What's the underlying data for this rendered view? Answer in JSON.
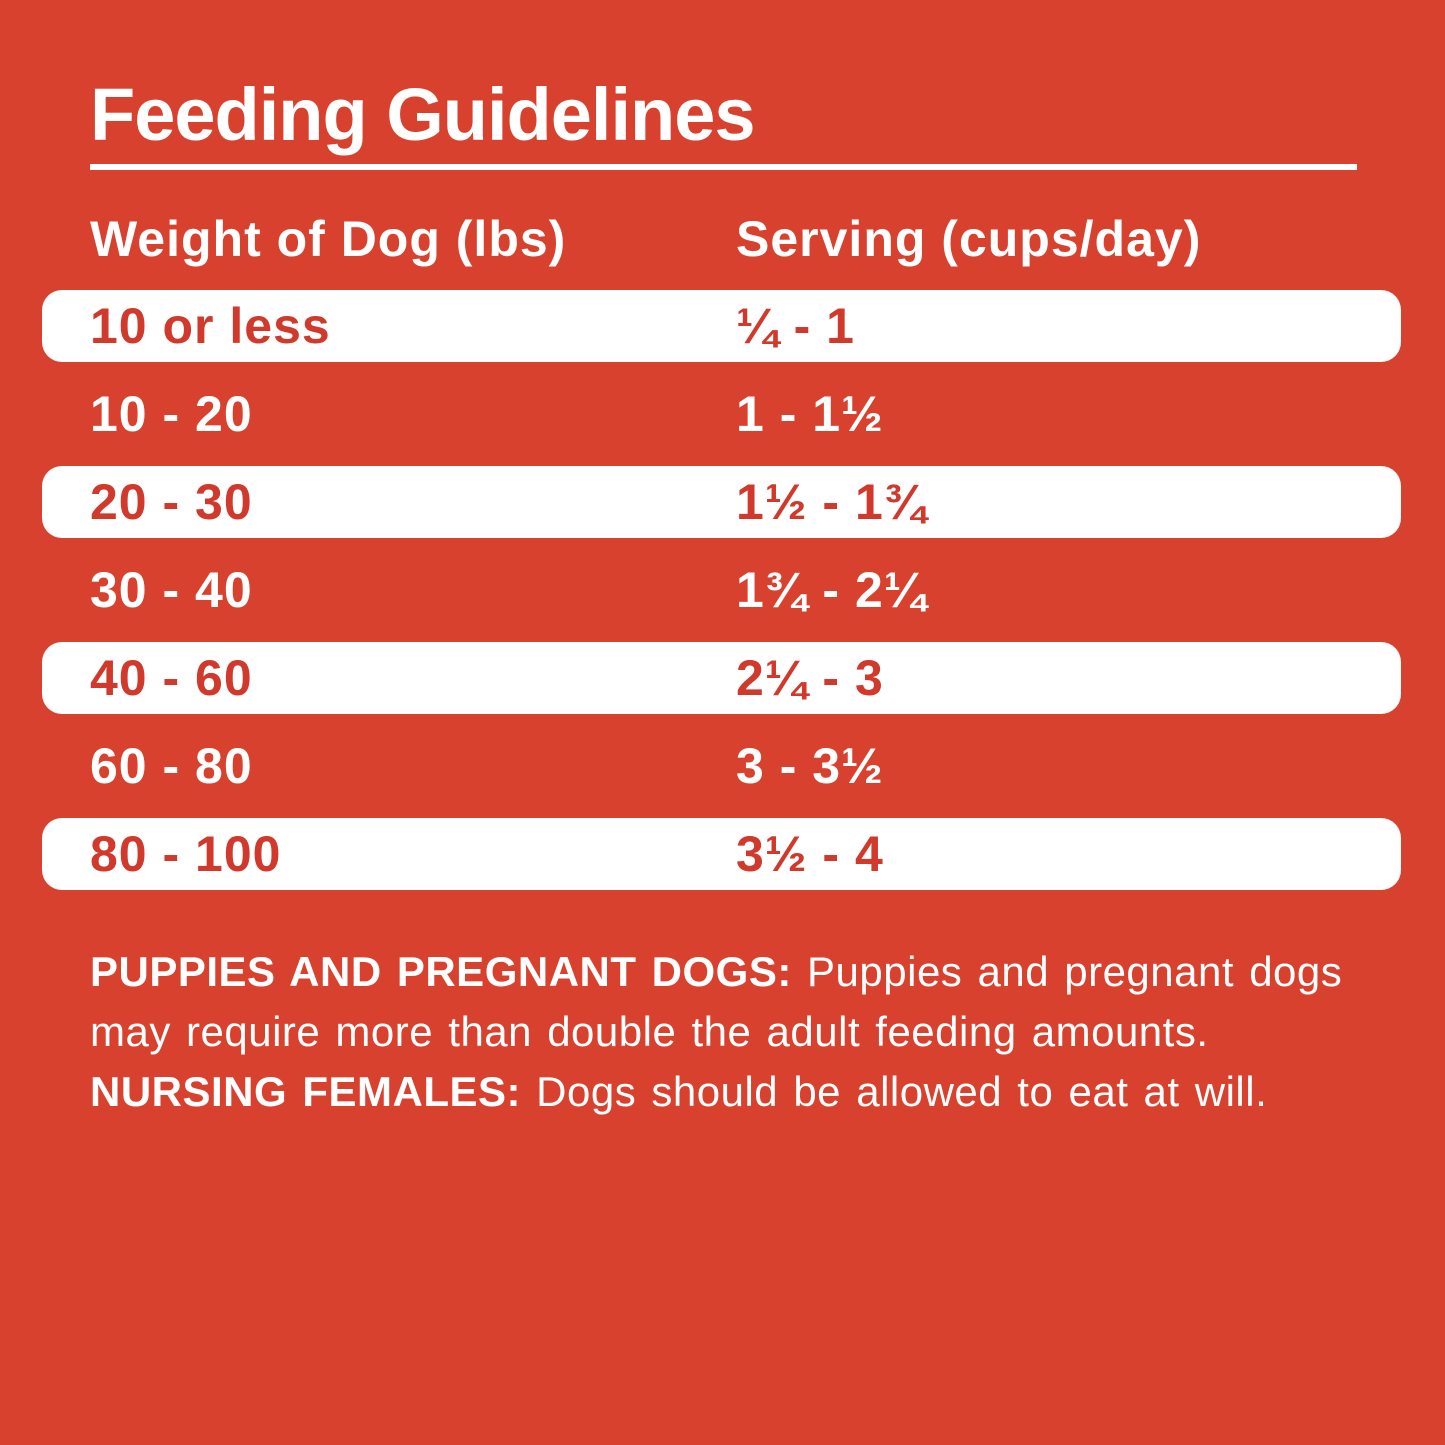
{
  "colors": {
    "background": "#D9412F",
    "row_highlight": "#FFFFFF",
    "text_on_red": "#FFFFFF",
    "text_on_white": "#D0392B"
  },
  "title": "Feeding Guidelines",
  "table": {
    "headers": [
      "Weight of Dog (lbs)",
      "Serving (cups/day)"
    ],
    "rows": [
      {
        "weight": "10 or less",
        "serving": "¼ - 1",
        "highlight": true
      },
      {
        "weight": "10 - 20",
        "serving": "1 - 1½",
        "highlight": false
      },
      {
        "weight": "20 - 30",
        "serving": "1½ - 1¾",
        "highlight": true
      },
      {
        "weight": "30 - 40",
        "serving": "1¾ - 2¼",
        "highlight": false
      },
      {
        "weight": "40 - 60",
        "serving": "2¼ - 3",
        "highlight": true
      },
      {
        "weight": "60 - 80",
        "serving": "3 - 3½",
        "highlight": false
      },
      {
        "weight": "80 - 100",
        "serving": "3½ - 4",
        "highlight": true
      }
    ]
  },
  "note": {
    "segments": [
      {
        "text": "PUPPIES AND PREGNANT DOGS: ",
        "bold": true
      },
      {
        "text": "Puppies and pregnant dogs may require more than double the adult feeding amounts. ",
        "bold": false
      },
      {
        "text": "NURSING FEMALES: ",
        "bold": true
      },
      {
        "text": "Dogs should be allowed to eat at will.",
        "bold": false
      }
    ]
  },
  "chart_data": {
    "type": "table",
    "title": "Feeding Guidelines",
    "columns": [
      "Weight of Dog (lbs)",
      "Serving (cups/day)"
    ],
    "rows": [
      [
        "10 or less",
        "¼ - 1"
      ],
      [
        "10 - 20",
        "1 - 1½"
      ],
      [
        "20 - 30",
        "1½ - 1¾"
      ],
      [
        "30 - 40",
        "1¾ - 2¼"
      ],
      [
        "40 - 60",
        "2¼ - 3"
      ],
      [
        "60 - 80",
        "3 - 3½"
      ],
      [
        "80 - 100",
        "3½ - 4"
      ]
    ],
    "notes": "PUPPIES AND PREGNANT DOGS: Puppies and pregnant dogs may require more than double the adult feeding amounts. NURSING FEMALES: Dogs should be allowed to eat at will.",
    "layout": "alternating row highlight: rows 1,3,5,7 white pills with red text; rows 2,4,6 red background with white text"
  }
}
